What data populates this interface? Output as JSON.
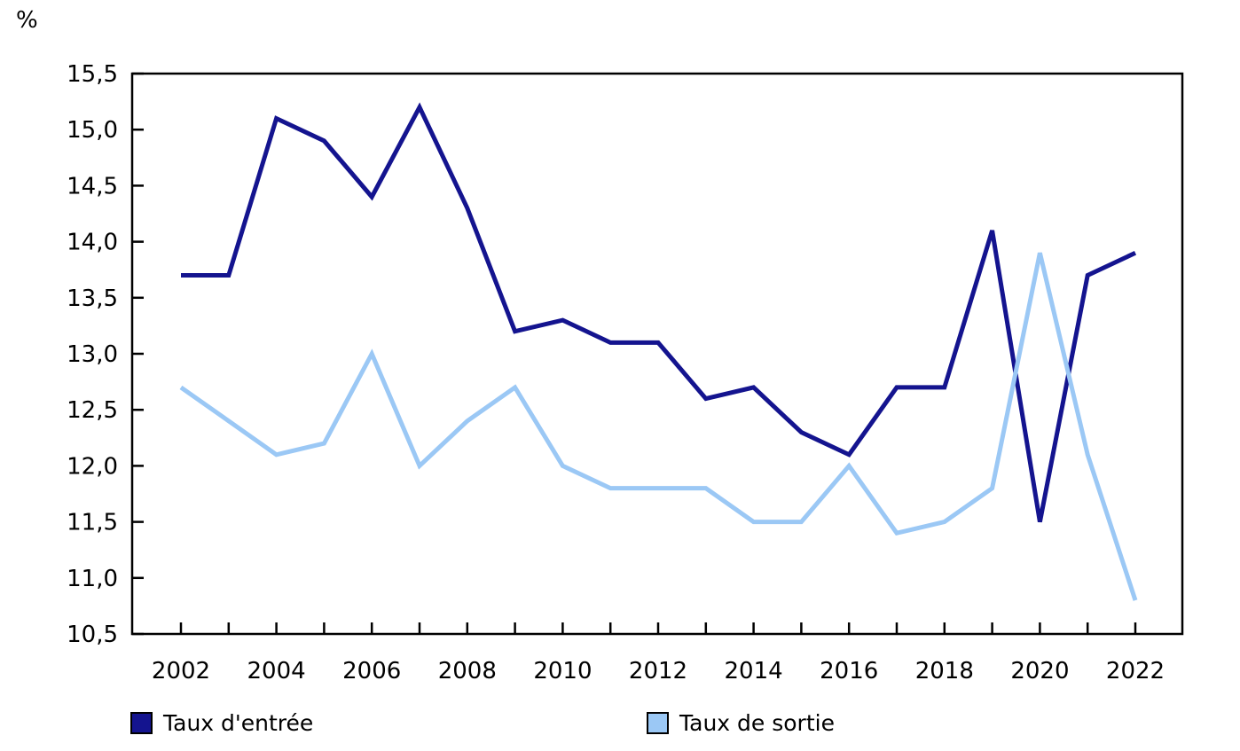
{
  "chart_data": {
    "type": "line",
    "title": "",
    "ylabel": "%",
    "xlabel": "",
    "grid": false,
    "legend_position": "bottom",
    "ylim": [
      10.5,
      15.5
    ],
    "x": [
      2002,
      2003,
      2004,
      2005,
      2006,
      2007,
      2008,
      2009,
      2010,
      2011,
      2012,
      2013,
      2014,
      2015,
      2016,
      2017,
      2018,
      2019,
      2020,
      2021,
      2022
    ],
    "xticks": [
      {
        "year": 2002,
        "label": "2002"
      },
      {
        "year": 2003,
        "label": ""
      },
      {
        "year": 2004,
        "label": "2004"
      },
      {
        "year": 2005,
        "label": ""
      },
      {
        "year": 2006,
        "label": "2006"
      },
      {
        "year": 2007,
        "label": ""
      },
      {
        "year": 2008,
        "label": "2008"
      },
      {
        "year": 2009,
        "label": ""
      },
      {
        "year": 2010,
        "label": "2010"
      },
      {
        "year": 2011,
        "label": ""
      },
      {
        "year": 2012,
        "label": "2012"
      },
      {
        "year": 2013,
        "label": ""
      },
      {
        "year": 2014,
        "label": "2014"
      },
      {
        "year": 2015,
        "label": ""
      },
      {
        "year": 2016,
        "label": "2016"
      },
      {
        "year": 2017,
        "label": ""
      },
      {
        "year": 2018,
        "label": "2018"
      },
      {
        "year": 2019,
        "label": ""
      },
      {
        "year": 2020,
        "label": "2020"
      },
      {
        "year": 2021,
        "label": ""
      },
      {
        "year": 2022,
        "label": "2022"
      }
    ],
    "yticks": [
      {
        "value": 15.5,
        "label": "15,5"
      },
      {
        "value": 15.0,
        "label": "15,0"
      },
      {
        "value": 14.5,
        "label": "14,5"
      },
      {
        "value": 14.0,
        "label": "14,0"
      },
      {
        "value": 13.5,
        "label": "13,5"
      },
      {
        "value": 13.0,
        "label": "13,0"
      },
      {
        "value": 12.5,
        "label": "12,5"
      },
      {
        "value": 12.0,
        "label": "12,0"
      },
      {
        "value": 11.5,
        "label": "11,5"
      },
      {
        "value": 11.0,
        "label": "11,0"
      },
      {
        "value": 10.5,
        "label": "10,5"
      }
    ],
    "series": [
      {
        "name": "Taux d'entrée",
        "color": "#14148F",
        "values": [
          13.7,
          13.7,
          15.1,
          14.9,
          14.4,
          15.2,
          14.3,
          13.2,
          13.3,
          13.1,
          13.1,
          12.6,
          12.7,
          12.3,
          12.1,
          12.7,
          12.7,
          14.1,
          11.5,
          13.7,
          13.9
        ]
      },
      {
        "name": "Taux de sortie",
        "color": "#9BC8F5",
        "values": [
          12.7,
          12.4,
          12.1,
          12.2,
          13.0,
          12.0,
          12.4,
          12.7,
          12.0,
          11.8,
          11.8,
          11.8,
          11.5,
          11.5,
          12.0,
          11.4,
          11.5,
          11.8,
          13.9,
          12.1,
          10.8
        ]
      }
    ],
    "axis_color": "#000000"
  }
}
